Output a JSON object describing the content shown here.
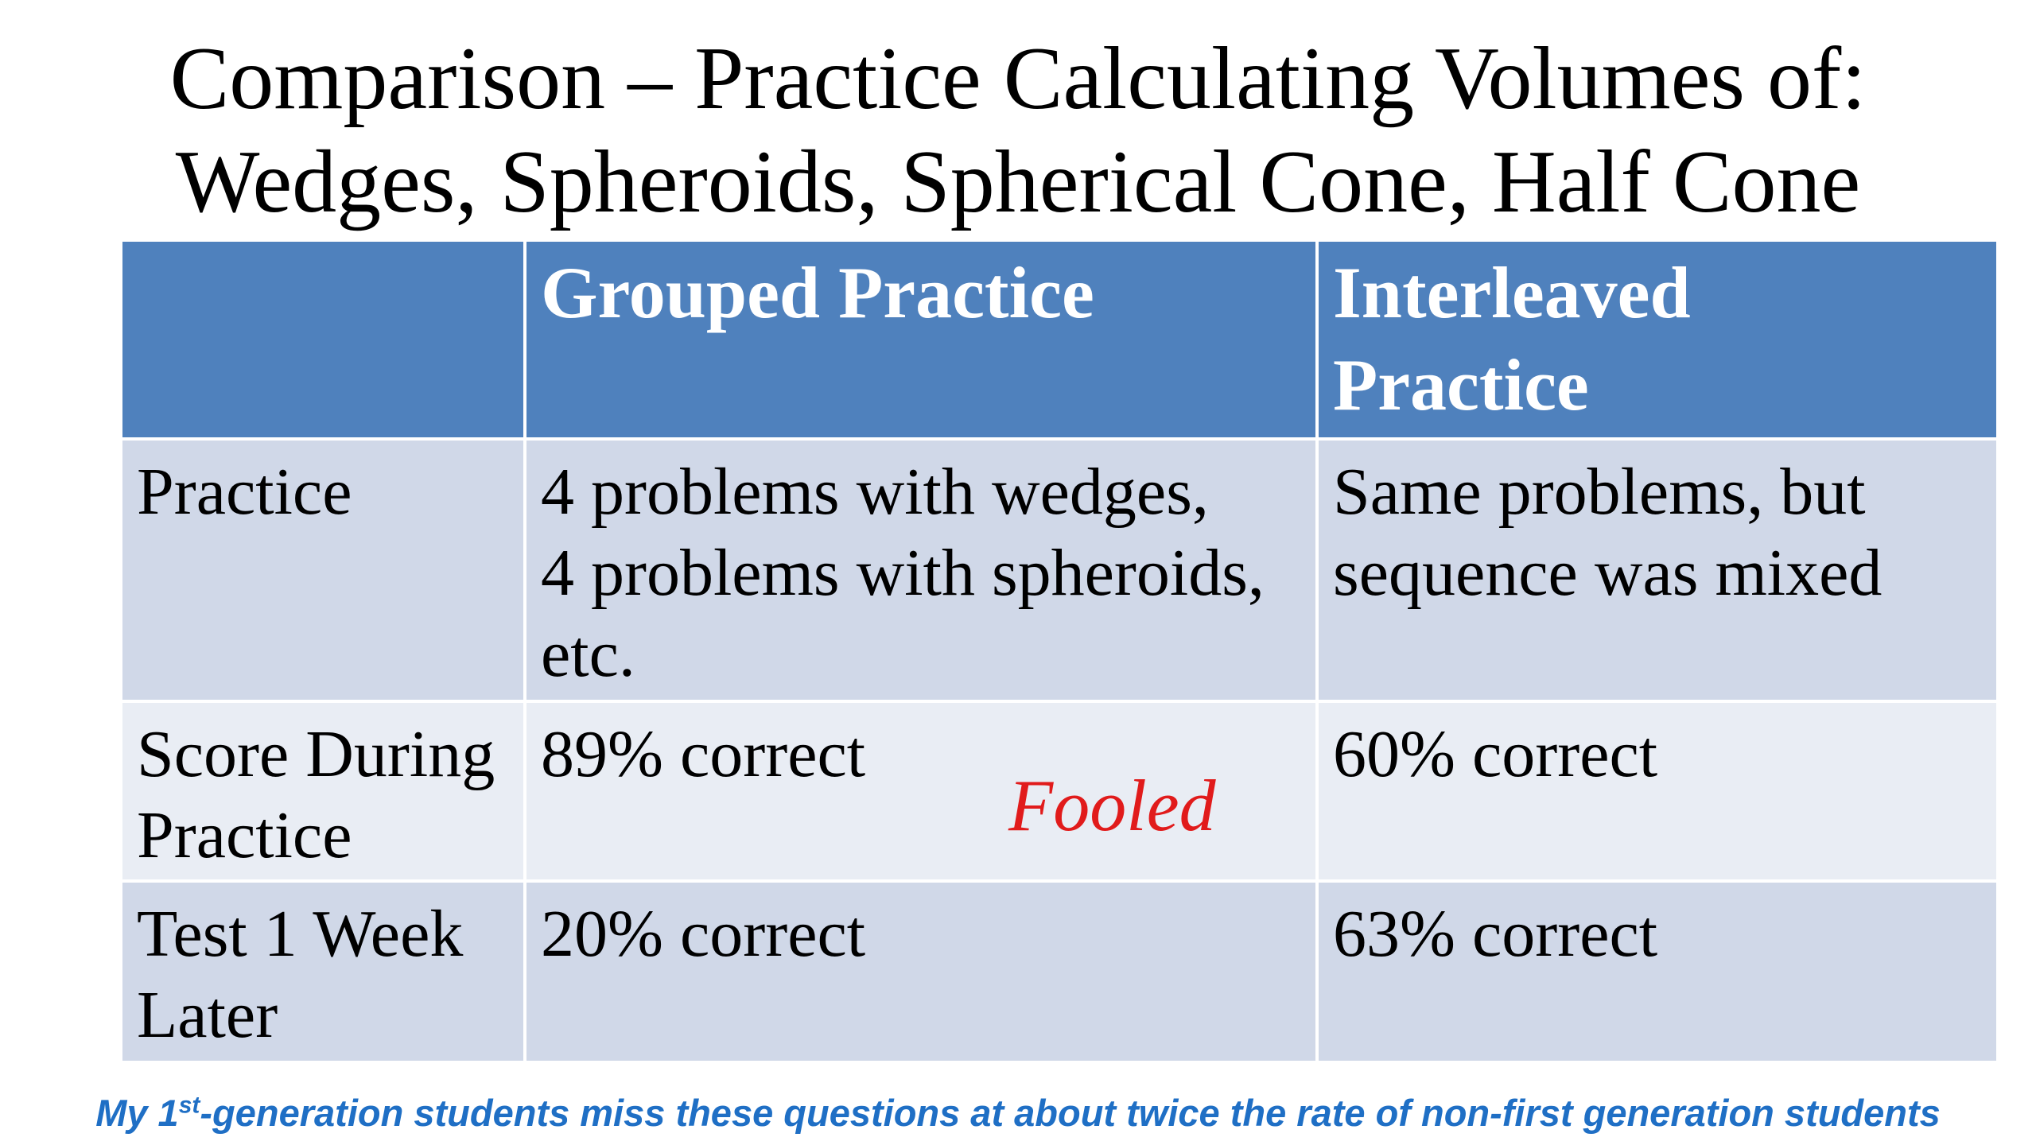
{
  "title": {
    "line1": "Comparison – Practice Calculating Volumes of:",
    "line2": "Wedges, Spheroids, Spherical Cone, Half Cone"
  },
  "table": {
    "headers": [
      "",
      "Grouped Practice",
      "Interleaved Practice"
    ],
    "header_lines": {
      "grouped": [
        "Grouped Practice"
      ],
      "interleaved": [
        "Interleaved",
        "Practice"
      ]
    },
    "rows": [
      {
        "label_lines": [
          "Practice"
        ],
        "grouped_lines": [
          "4 problems with wedges,",
          "4 problems with spheroids,",
          "etc."
        ],
        "interleaved_lines": [
          "Same problems, but",
          "sequence was mixed"
        ]
      },
      {
        "label_lines": [
          "Score During",
          "Practice"
        ],
        "grouped_lines": [
          "89% correct"
        ],
        "interleaved_lines": [
          "60% correct"
        ]
      },
      {
        "label_lines": [
          "Test 1 Week",
          "Later"
        ],
        "grouped_lines": [
          "20% correct"
        ],
        "interleaved_lines": [
          "63% correct"
        ]
      }
    ]
  },
  "annotation": "Fooled",
  "footnote": {
    "prefix": "My 1",
    "superscript": "st",
    "suffix": "-generation students miss these questions at about twice the rate of non-first generation students"
  },
  "colors": {
    "header_bg": "#4f81bd",
    "row_dark": "#d0d8e8",
    "row_light": "#e9edf4",
    "annotation": "#e11b1b",
    "footnote": "#1f6fc5"
  }
}
